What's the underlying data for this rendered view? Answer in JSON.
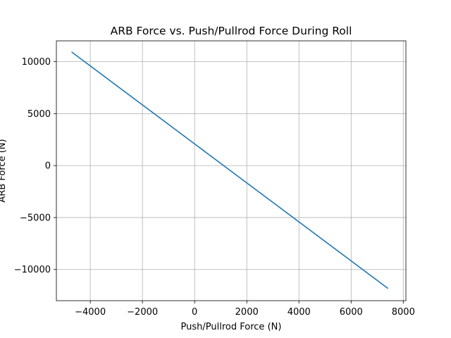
{
  "chart_data": {
    "type": "line",
    "title": "ARB Force vs. Push/Pullrod Force During Roll",
    "xlabel": "Push/Pullrod Force (N)",
    "ylabel": "ARB Force (N)",
    "xlim": [
      -5300,
      8100
    ],
    "ylim": [
      -13000,
      12000
    ],
    "xticks": [
      -4000,
      -2000,
      0,
      2000,
      4000,
      6000,
      8000
    ],
    "xtick_labels": [
      "−4000",
      "−2000",
      "0",
      "2000",
      "4000",
      "6000",
      "8000"
    ],
    "yticks": [
      -10000,
      -5000,
      0,
      5000,
      10000
    ],
    "ytick_labels": [
      "−10000",
      "−5000",
      "0",
      "5000",
      "10000"
    ],
    "grid": true,
    "series": [
      {
        "color": "#1f77b4",
        "x": [
          -4700,
          7400
        ],
        "y": [
          10900,
          -11800
        ]
      }
    ]
  }
}
